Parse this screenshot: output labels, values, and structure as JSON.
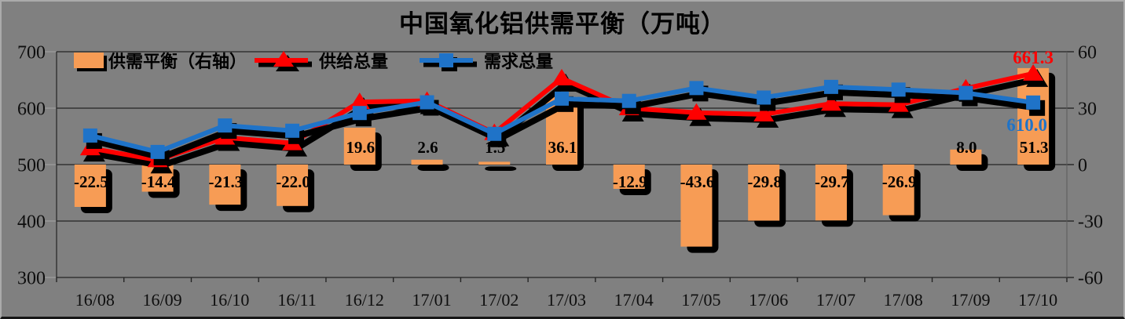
{
  "title": "中国氧化铝供需平衡（万吨）",
  "legend": {
    "items": [
      {
        "label": "供需平衡（右轴）",
        "swatch": "bar"
      },
      {
        "label": "供给总量",
        "swatch": "triangle-line"
      },
      {
        "label": "需求总量",
        "swatch": "square-line"
      }
    ]
  },
  "colors": {
    "background": "#808080",
    "bar": "#F79C55",
    "supply_line": "#FF0000",
    "demand_line": "#1F73C8",
    "shadow": "#000000",
    "grid": "#242424",
    "text": "#000000"
  },
  "chart_data": {
    "type": "combo",
    "title": "中国氧化铝供需平衡（万吨）",
    "categories": [
      "16/08",
      "16/09",
      "16/10",
      "16/11",
      "16/12",
      "17/01",
      "17/02",
      "17/03",
      "17/04",
      "17/05",
      "17/06",
      "17/07",
      "17/08",
      "17/09",
      "17/10"
    ],
    "left_axis": {
      "label_values": [
        700,
        600,
        500,
        400,
        300
      ],
      "min": 300,
      "max": 700
    },
    "right_axis": {
      "label_values": [
        60,
        30,
        0,
        -30,
        -60
      ],
      "min": -60,
      "max": 60
    },
    "grid": "horizontal",
    "legend_position": "top-left-inside",
    "series": [
      {
        "name": "供需平衡（右轴）",
        "type": "bar",
        "axis": "right",
        "color": "#F79C55",
        "values": [
          -22.5,
          -14.4,
          -21.3,
          -22.0,
          19.6,
          2.6,
          1.5,
          36.1,
          -12.9,
          -43.6,
          -29.8,
          -29.7,
          -26.9,
          8.0,
          51.3
        ],
        "labels": [
          "-22.5",
          "-14.4",
          "-21.3",
          "-22.0",
          "19.6",
          "2.6",
          "1.5",
          "36.1",
          "-12.9",
          "-43.6",
          "-29.8",
          "-29.7",
          "-26.9",
          "8.0",
          "51.3"
        ]
      },
      {
        "name": "供给总量",
        "type": "line",
        "marker": "triangle",
        "axis": "left",
        "color": "#FF0000",
        "values": [
          529,
          508,
          548,
          538,
          611,
          613,
          556,
          653,
          600,
          592,
          589,
          608,
          606,
          635,
          661.3
        ]
      },
      {
        "name": "需求总量",
        "type": "line",
        "marker": "square",
        "axis": "left",
        "color": "#1F73C8",
        "values": [
          551.5,
          522.4,
          569.3,
          560.0,
          591.4,
          610.4,
          554.5,
          616.9,
          612.9,
          635.6,
          618.8,
          637.7,
          632.9,
          627.0,
          610.0
        ]
      }
    ],
    "annotations": [
      {
        "text": "661.3",
        "series": "供给总量",
        "category": "17/10",
        "color": "#FF0000",
        "position": "above"
      },
      {
        "text": "610.0",
        "series": "需求总量",
        "category": "17/10",
        "color": "#1F73C8",
        "position": "below"
      }
    ]
  }
}
